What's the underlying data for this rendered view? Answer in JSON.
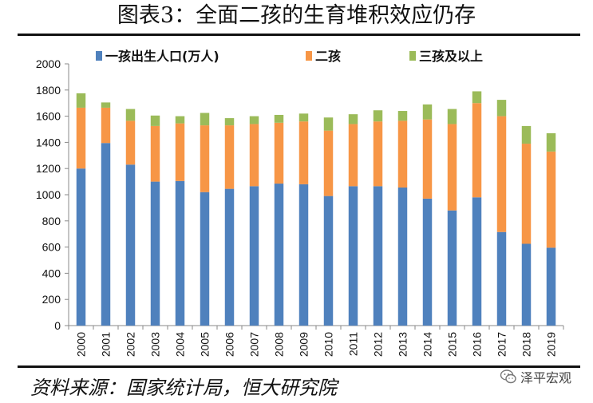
{
  "header": {
    "title": "图表3：全面二孩的生育堆积效应仍存"
  },
  "footer": {
    "source": "资料来源：国家统计局，恒大研究院",
    "watermark": "泽平宏观"
  },
  "colors": {
    "first_child": "#4f81bd",
    "second_child": "#f79646",
    "third_plus": "#9bbb59"
  },
  "chart_data": {
    "type": "bar",
    "stacked": true,
    "title": "",
    "xlabel": "",
    "ylabel": "",
    "ylim": [
      0,
      2000
    ],
    "yticks": [
      0,
      200,
      400,
      600,
      800,
      1000,
      1200,
      1400,
      1600,
      1800,
      2000
    ],
    "legend_position": "top",
    "grid": false,
    "categories": [
      "2000",
      "2001",
      "2002",
      "2003",
      "2004",
      "2005",
      "2006",
      "2007",
      "2008",
      "2009",
      "2010",
      "2011",
      "2012",
      "2013",
      "2014",
      "2015",
      "2016",
      "2017",
      "2018",
      "2019"
    ],
    "series": [
      {
        "name": "一孩出生人口(万人)",
        "color": "#4f81bd",
        "values": [
          1200,
          1395,
          1230,
          1100,
          1105,
          1020,
          1045,
          1065,
          1085,
          1080,
          990,
          1065,
          1065,
          1055,
          970,
          880,
          980,
          715,
          625,
          595
        ]
      },
      {
        "name": "二孩",
        "color": "#f79646",
        "values": [
          465,
          270,
          335,
          425,
          440,
          510,
          485,
          475,
          465,
          480,
          500,
          475,
          495,
          510,
          605,
          660,
          720,
          885,
          765,
          735
        ]
      },
      {
        "name": "三孩及以上",
        "color": "#9bbb59",
        "values": [
          110,
          40,
          90,
          80,
          55,
          95,
          55,
          60,
          60,
          60,
          100,
          75,
          85,
          75,
          115,
          115,
          90,
          125,
          135,
          140
        ]
      }
    ]
  }
}
